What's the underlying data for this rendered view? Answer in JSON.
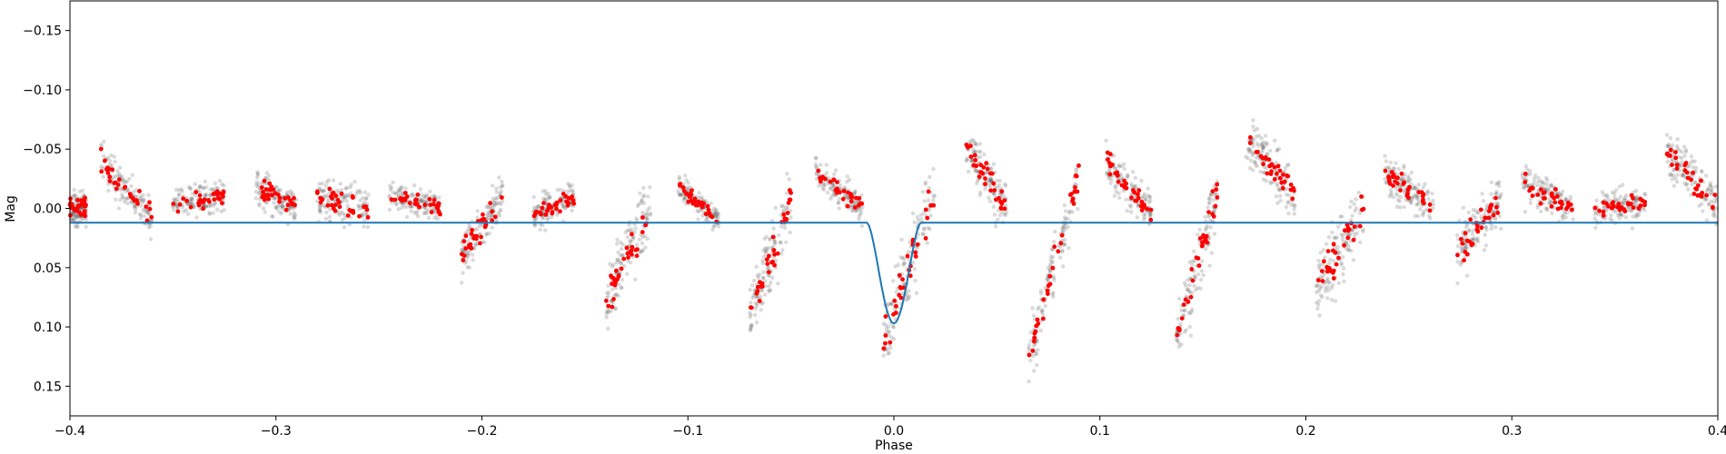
{
  "chart_data": {
    "type": "scatter",
    "title": "",
    "xlabel": "Phase",
    "ylabel": "Mag",
    "xlim": [
      -0.4,
      0.4
    ],
    "ylim": [
      0.175,
      -0.175
    ],
    "y_inverted": true,
    "grid": false,
    "x_ticks": [
      -0.4,
      -0.3,
      -0.2,
      -0.1,
      0.0,
      0.1,
      0.2,
      0.3,
      0.4
    ],
    "x_tick_labels": [
      "−0.4",
      "−0.3",
      "−0.2",
      "−0.1",
      "0.0",
      "0.1",
      "0.2",
      "0.3",
      "0.4"
    ],
    "y_ticks": [
      -0.15,
      -0.1,
      -0.05,
      0.0,
      0.05,
      0.1,
      0.15
    ],
    "y_tick_labels": [
      "−0.15",
      "−0.10",
      "−0.05",
      "0.00",
      "0.05",
      "0.10",
      "0.15"
    ],
    "colors": {
      "raw": "#555555",
      "binned": "#ff0000",
      "model": "#1f77b4"
    },
    "model": {
      "baseline": 0.012,
      "depth": 0.085,
      "center": 0.0,
      "x": [
        -0.4,
        -0.02,
        -0.012,
        -0.008,
        -0.004,
        0.0,
        0.004,
        0.008,
        0.012,
        0.02,
        0.4
      ],
      "y": [
        0.012,
        0.012,
        0.015,
        0.04,
        0.08,
        0.097,
        0.08,
        0.04,
        0.015,
        0.012,
        0.012
      ]
    },
    "segments": [
      {
        "x0": -0.4,
        "x1": -0.392,
        "y0": 0.0,
        "y1": 0.0,
        "spread": 0.02
      },
      {
        "x0": -0.385,
        "x1": -0.36,
        "y0": -0.04,
        "y1": 0.01,
        "spread": 0.025
      },
      {
        "x0": -0.35,
        "x1": -0.325,
        "y0": -0.005,
        "y1": -0.01,
        "spread": 0.02
      },
      {
        "x0": -0.31,
        "x1": -0.29,
        "y0": -0.02,
        "y1": 0.0,
        "spread": 0.022
      },
      {
        "x0": -0.28,
        "x1": -0.255,
        "y0": -0.01,
        "y1": 0.0,
        "spread": 0.025
      },
      {
        "x0": -0.245,
        "x1": -0.22,
        "y0": -0.01,
        "y1": 0.0,
        "spread": 0.018
      },
      {
        "x0": -0.21,
        "x1": -0.19,
        "y0": 0.04,
        "y1": -0.01,
        "spread": 0.03
      },
      {
        "x0": -0.175,
        "x1": -0.155,
        "y0": 0.005,
        "y1": -0.01,
        "spread": 0.018
      },
      {
        "x0": -0.14,
        "x1": -0.118,
        "y0": 0.08,
        "y1": 0.0,
        "spread": 0.04
      },
      {
        "x0": -0.105,
        "x1": -0.085,
        "y0": -0.02,
        "y1": 0.01,
        "spread": 0.015
      },
      {
        "x0": -0.07,
        "x1": -0.05,
        "y0": 0.09,
        "y1": -0.005,
        "spread": 0.04
      },
      {
        "x0": -0.038,
        "x1": -0.015,
        "y0": -0.03,
        "y1": 0.0,
        "spread": 0.02
      },
      {
        "x0": -0.005,
        "x1": 0.02,
        "y0": 0.11,
        "y1": -0.015,
        "spread": 0.045
      },
      {
        "x0": 0.035,
        "x1": 0.055,
        "y0": -0.05,
        "y1": 0.0,
        "spread": 0.03
      },
      {
        "x0": 0.065,
        "x1": 0.09,
        "y0": 0.13,
        "y1": -0.03,
        "spread": 0.04
      },
      {
        "x0": 0.103,
        "x1": 0.125,
        "y0": -0.04,
        "y1": 0.005,
        "spread": 0.025
      },
      {
        "x0": 0.137,
        "x1": 0.157,
        "y0": 0.11,
        "y1": -0.01,
        "spread": 0.04
      },
      {
        "x0": 0.17,
        "x1": 0.195,
        "y0": -0.06,
        "y1": -0.01,
        "spread": 0.03
      },
      {
        "x0": 0.205,
        "x1": 0.228,
        "y0": 0.07,
        "y1": 0.0,
        "spread": 0.045
      },
      {
        "x0": 0.238,
        "x1": 0.262,
        "y0": -0.03,
        "y1": 0.0,
        "spread": 0.025
      },
      {
        "x0": 0.273,
        "x1": 0.295,
        "y0": 0.04,
        "y1": -0.01,
        "spread": 0.035
      },
      {
        "x0": 0.305,
        "x1": 0.33,
        "y0": -0.02,
        "y1": 0.0,
        "spread": 0.022
      },
      {
        "x0": 0.34,
        "x1": 0.365,
        "y0": 0.0,
        "y1": -0.005,
        "spread": 0.02
      },
      {
        "x0": 0.375,
        "x1": 0.4,
        "y0": -0.05,
        "y1": 0.0,
        "spread": 0.03
      }
    ]
  }
}
